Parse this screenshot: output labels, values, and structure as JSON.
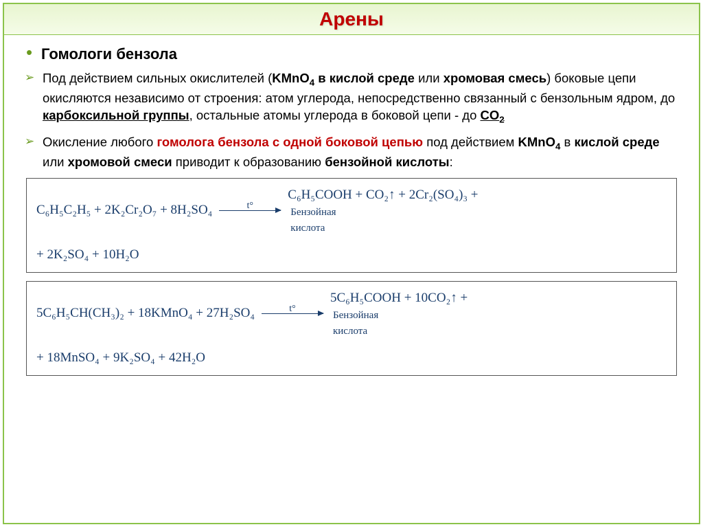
{
  "title": "Арены",
  "subheading": "Гомологи бензола",
  "bullets": {
    "b1_parts": {
      "t1": "Под действием сильных окислителей (",
      "kmno4_bold": "KMnO",
      "kmno4_sub": "4",
      "t2": "в кислой среде",
      "t3": " или ",
      "chrom": "хромовая смесь",
      "t4": ") боковые цепи окисляются независимо от строения: атом углерода, непосредственно связанный с бензольным ядром, до ",
      "carboxyl": "карбоксильной группы",
      "t5": ", остальные атомы углерода в боковой цепи - до ",
      "co2_bold": "CO",
      "co2_sub": "2"
    },
    "b2_parts": {
      "t1": "Окисление любого ",
      "homolog": "гомолога бензола с одной боковой цепью",
      "t2": " под действием ",
      "kmno4_bold": "KMnO",
      "kmno4_sub": "4",
      "t3": " в ",
      "acid": "кислой среде",
      "t4": " или ",
      "chrom": "хромовой смеси",
      "t5": " приводит к образованию ",
      "benzoic": "бензойной кислоты",
      "t6": ":"
    }
  },
  "equations": {
    "eq1": {
      "lhs": "C₆H₅C₂H₅ + 2K₂Cr₂O₇ + 8H₂SO₄",
      "arrow_label": "t°",
      "rhs_main": "C₆H₅COOH + CO₂↑ + 2Cr₂(SO₄)₃ +",
      "rhs_annot": "Бензойная\nкислота",
      "line2": "+ 2K₂SO₄ + 10H₂O"
    },
    "eq2": {
      "lhs": "5C₆H₅CH(CH₃)₂ + 18KMnO₄ + 27H₂SO₄",
      "arrow_label": "t°",
      "rhs_main": "5C₆H₅COOH + 10CO₂↑ +",
      "rhs_annot": "Бензойная\nкислота",
      "line2": "+ 18MnSO₄ + 9K₂SO₄ + 42H₂O"
    }
  },
  "style": {
    "title_color": "#c00000",
    "accent_green": "#6a9b1f",
    "border_green": "#8bc34a",
    "eq_text_color": "#1a3d6b",
    "title_fontsize": 28,
    "sub_fontsize": 22,
    "body_fontsize": 18.5,
    "eq_fontsize": 19
  }
}
